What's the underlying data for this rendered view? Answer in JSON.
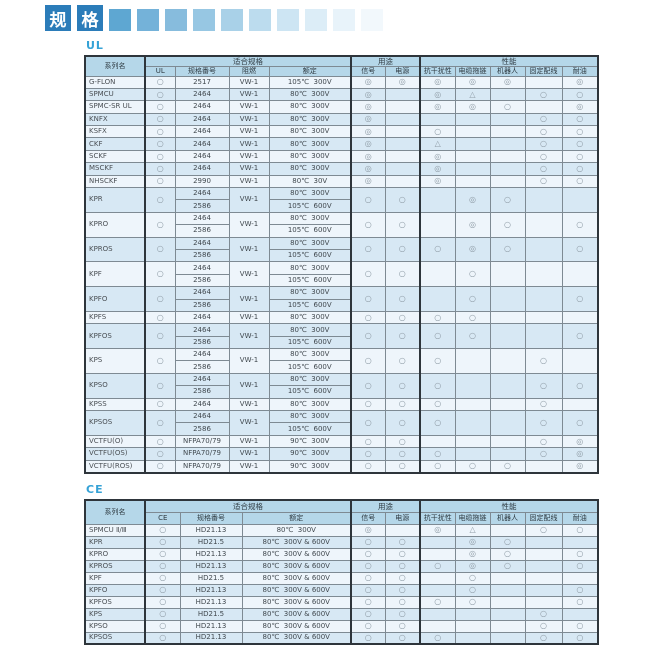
{
  "title": {
    "text": "规格",
    "chars": [
      "规",
      "格"
    ],
    "accent_color": "#2b7cb9",
    "deco_colors": [
      "#5ea7d2",
      "#74b2d9",
      "#87bcdd",
      "#97c7e3",
      "#a9d1e8",
      "#bcdcee",
      "#cde5f3",
      "#dcedf7",
      "#e8f3fa",
      "#f2f8fc"
    ]
  },
  "ul": {
    "label": "UL",
    "header": {
      "series": "系列名",
      "groups": [
        {
          "label": "适合规格",
          "span": 4
        },
        {
          "label": "用途",
          "span": 2
        },
        {
          "label": "性能",
          "span": 5
        }
      ],
      "subcols": [
        "UL",
        "规格番号",
        "阻燃",
        "额定",
        "信号",
        "电源",
        "抗干扰性",
        "电缆拖链",
        "机器人",
        "固定配线",
        "耐油"
      ]
    },
    "rows": [
      {
        "name": "G-FLON",
        "cert": "○",
        "flame": "VW-1",
        "specs": [
          {
            "no": "2517",
            "rating": "105℃  300V"
          }
        ],
        "marks": [
          "◎",
          "◎",
          "◎",
          "◎",
          "◎",
          "",
          "◎"
        ]
      },
      {
        "name": "SPMCU",
        "cert": "○",
        "flame": "VW-1",
        "specs": [
          {
            "no": "2464",
            "rating": "80℃  300V"
          }
        ],
        "marks": [
          "◎",
          "",
          "◎",
          "△",
          "",
          "○",
          "○"
        ]
      },
      {
        "name": "SPMC-SR UL",
        "cert": "○",
        "flame": "VW-1",
        "specs": [
          {
            "no": "2464",
            "rating": "80℃  300V"
          }
        ],
        "marks": [
          "◎",
          "",
          "◎",
          "◎",
          "○",
          "",
          "◎"
        ]
      },
      {
        "name": "KNFX",
        "cert": "○",
        "flame": "VW-1",
        "specs": [
          {
            "no": "2464",
            "rating": "80℃  300V"
          }
        ],
        "marks": [
          "◎",
          "",
          "",
          "",
          "",
          "○",
          "○"
        ]
      },
      {
        "name": "KSFX",
        "cert": "○",
        "flame": "VW-1",
        "specs": [
          {
            "no": "2464",
            "rating": "80℃  300V"
          }
        ],
        "marks": [
          "◎",
          "",
          "○",
          "",
          "",
          "○",
          "○"
        ]
      },
      {
        "name": "CKF",
        "cert": "○",
        "flame": "VW-1",
        "specs": [
          {
            "no": "2464",
            "rating": "80℃  300V"
          }
        ],
        "marks": [
          "◎",
          "",
          "△",
          "",
          "",
          "○",
          "○"
        ]
      },
      {
        "name": "SCKF",
        "cert": "○",
        "flame": "VW-1",
        "specs": [
          {
            "no": "2464",
            "rating": "80℃  300V"
          }
        ],
        "marks": [
          "◎",
          "",
          "◎",
          "",
          "",
          "○",
          "○"
        ]
      },
      {
        "name": "MSCKF",
        "cert": "○",
        "flame": "VW-1",
        "specs": [
          {
            "no": "2464",
            "rating": "80℃  300V"
          }
        ],
        "marks": [
          "◎",
          "",
          "◎",
          "",
          "",
          "○",
          "○"
        ]
      },
      {
        "name": "NHSCKF",
        "cert": "○",
        "flame": "VW-1",
        "specs": [
          {
            "no": "2990",
            "rating": "80℃  30V"
          }
        ],
        "marks": [
          "◎",
          "",
          "◎",
          "",
          "",
          "○",
          "○"
        ]
      },
      {
        "name": "KPR",
        "cert": "○",
        "flame": "VW-1",
        "specs": [
          {
            "no": "2464",
            "rating": "80℃  300V"
          },
          {
            "no": "2586",
            "rating": "105℃  600V"
          }
        ],
        "marks": [
          "○",
          "○",
          "",
          "◎",
          "○",
          "",
          ""
        ]
      },
      {
        "name": "KPRO",
        "cert": "○",
        "flame": "VW-1",
        "specs": [
          {
            "no": "2464",
            "rating": "80℃  300V"
          },
          {
            "no": "2586",
            "rating": "105℃  600V"
          }
        ],
        "marks": [
          "○",
          "○",
          "",
          "◎",
          "○",
          "",
          "○"
        ]
      },
      {
        "name": "KPROS",
        "cert": "○",
        "flame": "VW-1",
        "specs": [
          {
            "no": "2464",
            "rating": "80℃  300V"
          },
          {
            "no": "2586",
            "rating": "105℃  600V"
          }
        ],
        "marks": [
          "○",
          "○",
          "○",
          "◎",
          "○",
          "",
          "○"
        ]
      },
      {
        "name": "KPF",
        "cert": "○",
        "flame": "VW-1",
        "specs": [
          {
            "no": "2464",
            "rating": "80℃  300V"
          },
          {
            "no": "2586",
            "rating": "105℃  600V"
          }
        ],
        "marks": [
          "○",
          "○",
          "",
          "○",
          "",
          "",
          ""
        ]
      },
      {
        "name": "KPFO",
        "cert": "○",
        "flame": "VW-1",
        "specs": [
          {
            "no": "2464",
            "rating": "80℃  300V"
          },
          {
            "no": "2586",
            "rating": "105℃  600V"
          }
        ],
        "marks": [
          "○",
          "○",
          "",
          "○",
          "",
          "",
          "○"
        ]
      },
      {
        "name": "KPFS",
        "cert": "○",
        "flame": "VW-1",
        "specs": [
          {
            "no": "2464",
            "rating": "80℃  300V"
          }
        ],
        "marks": [
          "○",
          "○",
          "○",
          "○",
          "",
          "",
          ""
        ]
      },
      {
        "name": "KPFOS",
        "cert": "○",
        "flame": "VW-1",
        "specs": [
          {
            "no": "2464",
            "rating": "80℃  300V"
          },
          {
            "no": "2586",
            "rating": "105℃  600V"
          }
        ],
        "marks": [
          "○",
          "○",
          "○",
          "○",
          "",
          "",
          "○"
        ]
      },
      {
        "name": "KPS",
        "cert": "○",
        "flame": "VW-1",
        "specs": [
          {
            "no": "2464",
            "rating": "80℃  300V"
          },
          {
            "no": "2586",
            "rating": "105℃  600V"
          }
        ],
        "marks": [
          "○",
          "○",
          "○",
          "",
          "",
          "○",
          ""
        ]
      },
      {
        "name": "KPSO",
        "cert": "○",
        "flame": "VW-1",
        "specs": [
          {
            "no": "2464",
            "rating": "80℃  300V"
          },
          {
            "no": "2586",
            "rating": "105℃  600V"
          }
        ],
        "marks": [
          "○",
          "○",
          "○",
          "",
          "",
          "○",
          "○"
        ]
      },
      {
        "name": "KPSS",
        "cert": "○",
        "flame": "VW-1",
        "specs": [
          {
            "no": "2464",
            "rating": "80℃  300V"
          }
        ],
        "marks": [
          "○",
          "○",
          "○",
          "",
          "",
          "○",
          ""
        ]
      },
      {
        "name": "KPSOS",
        "cert": "○",
        "flame": "VW-1",
        "specs": [
          {
            "no": "2464",
            "rating": "80℃  300V"
          },
          {
            "no": "2586",
            "rating": "105℃  600V"
          }
        ],
        "marks": [
          "○",
          "○",
          "○",
          "",
          "",
          "○",
          "○"
        ]
      },
      {
        "name": "VCTFU(O)",
        "cert": "○",
        "flame": "VW-1",
        "specs": [
          {
            "no": "NFPA70/79",
            "rating": "90℃  300V"
          }
        ],
        "marks": [
          "○",
          "○",
          "",
          "",
          "",
          "○",
          "◎"
        ]
      },
      {
        "name": "VCTFU(OS)",
        "cert": "○",
        "flame": "VW-1",
        "specs": [
          {
            "no": "NFPA70/79",
            "rating": "90℃  300V"
          }
        ],
        "marks": [
          "○",
          "○",
          "○",
          "",
          "",
          "○",
          "◎"
        ]
      },
      {
        "name": "VCTFU(ROS)",
        "cert": "○",
        "flame": "VW-1",
        "specs": [
          {
            "no": "NFPA70/79",
            "rating": "90℃  300V"
          }
        ],
        "marks": [
          "○",
          "○",
          "○",
          "○",
          "○",
          "",
          "◎"
        ]
      }
    ]
  },
  "ce": {
    "label": "CE",
    "header": {
      "series": "系列名",
      "groups": [
        {
          "label": "适合规格",
          "span": 3
        },
        {
          "label": "用途",
          "span": 2
        },
        {
          "label": "性能",
          "span": 5
        }
      ],
      "subcols": [
        "CE",
        "规格番号",
        "额定",
        "信号",
        "电源",
        "抗干扰性",
        "电缆拖链",
        "机器人",
        "固定配线",
        "耐油"
      ]
    },
    "rows": [
      {
        "name": "SPMCU Ⅱ/Ⅲ",
        "cert": "○",
        "specs": [
          {
            "no": "HD21.13",
            "rating": "80℃  300V"
          }
        ],
        "marks": [
          "◎",
          "",
          "◎",
          "△",
          "",
          "○",
          "○"
        ]
      },
      {
        "name": "KPR",
        "cert": "○",
        "specs": [
          {
            "no": "HD21.5",
            "rating": "80℃  300V & 600V"
          }
        ],
        "marks": [
          "○",
          "○",
          "",
          "◎",
          "○",
          "",
          ""
        ]
      },
      {
        "name": "KPRO",
        "cert": "○",
        "specs": [
          {
            "no": "HD21.13",
            "rating": "80℃  300V & 600V"
          }
        ],
        "marks": [
          "○",
          "○",
          "",
          "◎",
          "○",
          "",
          "○"
        ]
      },
      {
        "name": "KPROS",
        "cert": "○",
        "specs": [
          {
            "no": "HD21.13",
            "rating": "80℃  300V & 600V"
          }
        ],
        "marks": [
          "○",
          "○",
          "○",
          "◎",
          "○",
          "",
          "○"
        ]
      },
      {
        "name": "KPF",
        "cert": "○",
        "specs": [
          {
            "no": "HD21.5",
            "rating": "80℃  300V & 600V"
          }
        ],
        "marks": [
          "○",
          "○",
          "",
          "○",
          "",
          "",
          ""
        ]
      },
      {
        "name": "KPFO",
        "cert": "○",
        "specs": [
          {
            "no": "HD21.13",
            "rating": "80℃  300V & 600V"
          }
        ],
        "marks": [
          "○",
          "○",
          "",
          "○",
          "",
          "",
          "○"
        ]
      },
      {
        "name": "KPFOS",
        "cert": "○",
        "specs": [
          {
            "no": "HD21.13",
            "rating": "80℃  300V & 600V"
          }
        ],
        "marks": [
          "○",
          "○",
          "○",
          "○",
          "",
          "",
          "○"
        ]
      },
      {
        "name": "KPS",
        "cert": "○",
        "specs": [
          {
            "no": "HD21.5",
            "rating": "80℃  300V & 600V"
          }
        ],
        "marks": [
          "○",
          "○",
          "",
          "",
          "",
          "○",
          ""
        ]
      },
      {
        "name": "KPSO",
        "cert": "○",
        "specs": [
          {
            "no": "HD21.13",
            "rating": "80℃  300V & 600V"
          }
        ],
        "marks": [
          "○",
          "○",
          "",
          "",
          "",
          "○",
          "○"
        ]
      },
      {
        "name": "KPSOS",
        "cert": "○",
        "specs": [
          {
            "no": "HD21.13",
            "rating": "80℃  300V & 600V"
          }
        ],
        "marks": [
          "○",
          "○",
          "○",
          "",
          "",
          "○",
          "○"
        ]
      }
    ]
  }
}
